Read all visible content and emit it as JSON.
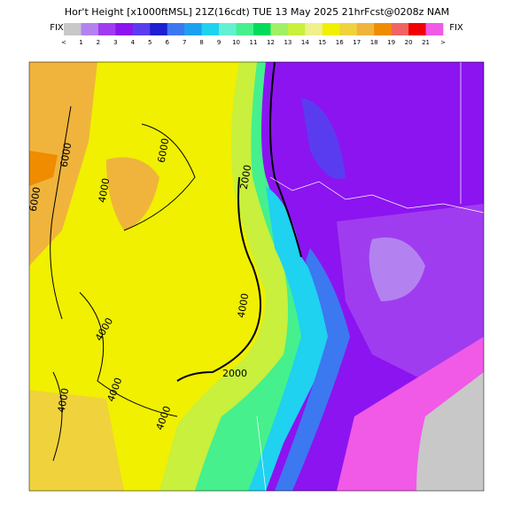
{
  "header": {
    "title": "Hor't Height [x1000ftMSL] 21Z(16cdt) TUE 13 May 2025 21hrFcst@0208z NAM"
  },
  "colorbar": {
    "left_label": "FIX",
    "right_label": "FIX",
    "ticks": [
      "<",
      "1",
      "2",
      "3",
      "4",
      "5",
      "6",
      "7",
      "8",
      "9",
      "10",
      "11",
      "12",
      "13",
      "14",
      "15",
      "16",
      "17",
      "18",
      "19",
      "20",
      "21",
      ">"
    ],
    "colors": [
      "#c8c8c8",
      "#b482f0",
      "#a03cf0",
      "#8c14f0",
      "#5a3cf0",
      "#1e1ed2",
      "#3c78f0",
      "#1ea0f0",
      "#1ed2f0",
      "#64f0d2",
      "#46f08c",
      "#00dc5a",
      "#a0f064",
      "#c8f03c",
      "#f0f08c",
      "#f0f000",
      "#f0d23c",
      "#f0b43c",
      "#f08c00",
      "#f06464",
      "#f00000",
      "#f05ae6",
      "#e614be"
    ]
  },
  "contour_labels": [
    "6000",
    "6000",
    "6000",
    "4000",
    "2000",
    "4000",
    "2000",
    "4000",
    "4000",
    "4000",
    "4000"
  ]
}
